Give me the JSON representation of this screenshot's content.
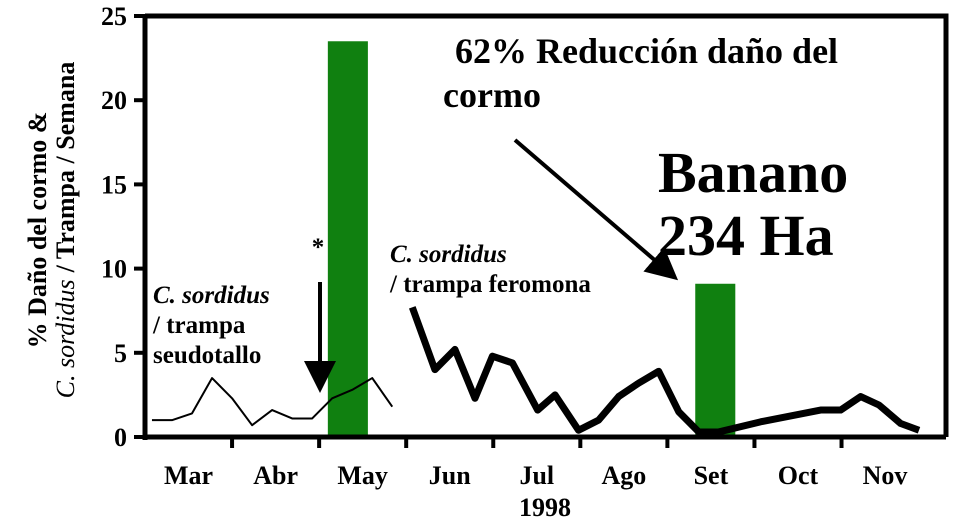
{
  "chart_data": {
    "type": "combo",
    "ylabel": [
      "% Daño del cormo &",
      "C. sordidus",
      "/ Trampa / Semana"
    ],
    "xlabel": "1998",
    "categories": [
      "Mar",
      "Abr",
      "May",
      "Jun",
      "Jul",
      "Ago",
      "Set",
      "Oct",
      "Nov"
    ],
    "xlim": [
      0,
      9.2
    ],
    "ylim": [
      0,
      25
    ],
    "yticks": [
      0,
      5,
      10,
      15,
      20,
      25
    ],
    "series": [
      {
        "type": "bar",
        "color": "#108010",
        "x": [
          2.33,
          6.55
        ],
        "values": [
          23.5,
          9.1
        ]
      },
      {
        "type": "line",
        "color": "#000000",
        "line_width": 2,
        "x": [
          0.08,
          0.31,
          0.54,
          0.77,
          1.0,
          1.23,
          1.46,
          1.69,
          1.92,
          2.15,
          2.38,
          2.61,
          2.84
        ],
        "values": [
          1.0,
          1.0,
          1.4,
          3.5,
          2.3,
          0.7,
          1.6,
          1.1,
          1.1,
          2.3,
          2.8,
          3.5,
          1.8
        ]
      },
      {
        "type": "line",
        "color": "#000000",
        "line_width": 7,
        "x": [
          3.07,
          3.33,
          3.56,
          3.79,
          3.99,
          4.22,
          4.51,
          4.71,
          4.98,
          5.21,
          5.44,
          5.67,
          5.9,
          6.13,
          6.36,
          6.59,
          7.07,
          7.76,
          7.99,
          8.22,
          8.43,
          8.68,
          8.89
        ],
        "values": [
          7.7,
          4.0,
          5.2,
          2.3,
          4.8,
          4.4,
          1.6,
          2.5,
          0.4,
          1.0,
          2.4,
          3.2,
          3.9,
          1.5,
          0.3,
          0.3,
          0.9,
          1.6,
          1.6,
          2.4,
          1.9,
          0.8,
          0.4
        ]
      }
    ],
    "annotations": [
      "*",
      "C. sordidus",
      "/ trampa",
      "seudotallo",
      "C. sordidus",
      "/ trampa feromona",
      "62% Reducción daño del",
      "cormo",
      "Banano",
      "234 Ha"
    ]
  }
}
